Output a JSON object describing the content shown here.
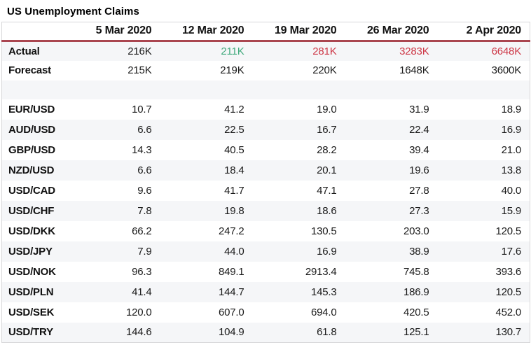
{
  "title": "US Unemployment Claims",
  "chart_data": {
    "type": "table",
    "title": "US Unemployment Claims",
    "columns": [
      "5 Mar 2020",
      "12 Mar 2020",
      "19 Mar 2020",
      "26 Mar 2020",
      "2 Apr 2020"
    ],
    "claims_rows": [
      {
        "label": "Actual",
        "values": [
          "216K",
          "211K",
          "281K",
          "3283K",
          "6648K"
        ],
        "value_styles": [
          "default",
          "positive",
          "negative",
          "negative",
          "negative"
        ]
      },
      {
        "label": "Forecast",
        "values": [
          "215K",
          "219K",
          "220K",
          "1648K",
          "3600K"
        ],
        "value_styles": [
          "default",
          "default",
          "default",
          "default",
          "default"
        ]
      }
    ],
    "currency_rows": [
      {
        "label": "EUR/USD",
        "values": [
          "10.7",
          "41.2",
          "19.0",
          "31.9",
          "18.9"
        ]
      },
      {
        "label": "AUD/USD",
        "values": [
          "6.6",
          "22.5",
          "16.7",
          "22.4",
          "16.9"
        ]
      },
      {
        "label": "GBP/USD",
        "values": [
          "14.3",
          "40.5",
          "28.2",
          "39.4",
          "21.0"
        ]
      },
      {
        "label": "NZD/USD",
        "values": [
          "6.6",
          "18.4",
          "20.1",
          "19.6",
          "13.8"
        ]
      },
      {
        "label": "USD/CAD",
        "values": [
          "9.6",
          "41.7",
          "47.1",
          "27.8",
          "40.0"
        ]
      },
      {
        "label": "USD/CHF",
        "values": [
          "7.8",
          "19.8",
          "18.6",
          "27.3",
          "15.9"
        ]
      },
      {
        "label": "USD/DKK",
        "values": [
          "66.2",
          "247.2",
          "130.5",
          "203.0",
          "120.5"
        ]
      },
      {
        "label": "USD/JPY",
        "values": [
          "7.9",
          "44.0",
          "16.9",
          "38.9",
          "17.6"
        ]
      },
      {
        "label": "USD/NOK",
        "values": [
          "96.3",
          "849.1",
          "2913.4",
          "745.8",
          "393.6"
        ]
      },
      {
        "label": "USD/PLN",
        "values": [
          "41.4",
          "144.7",
          "145.3",
          "186.9",
          "120.5"
        ]
      },
      {
        "label": "USD/SEK",
        "values": [
          "120.0",
          "607.0",
          "694.0",
          "420.5",
          "452.0"
        ]
      },
      {
        "label": "USD/TRY",
        "values": [
          "144.6",
          "104.9",
          "61.8",
          "125.1",
          "130.7"
        ]
      }
    ]
  },
  "colors": {
    "text": "#1a1a1a",
    "positive_green": "#41aa7d",
    "negative_red": "#cd3746",
    "header_rule_red": "#aa4650",
    "row_alt_bg": "#f5f6f8",
    "table_border": "#d8d8da"
  }
}
